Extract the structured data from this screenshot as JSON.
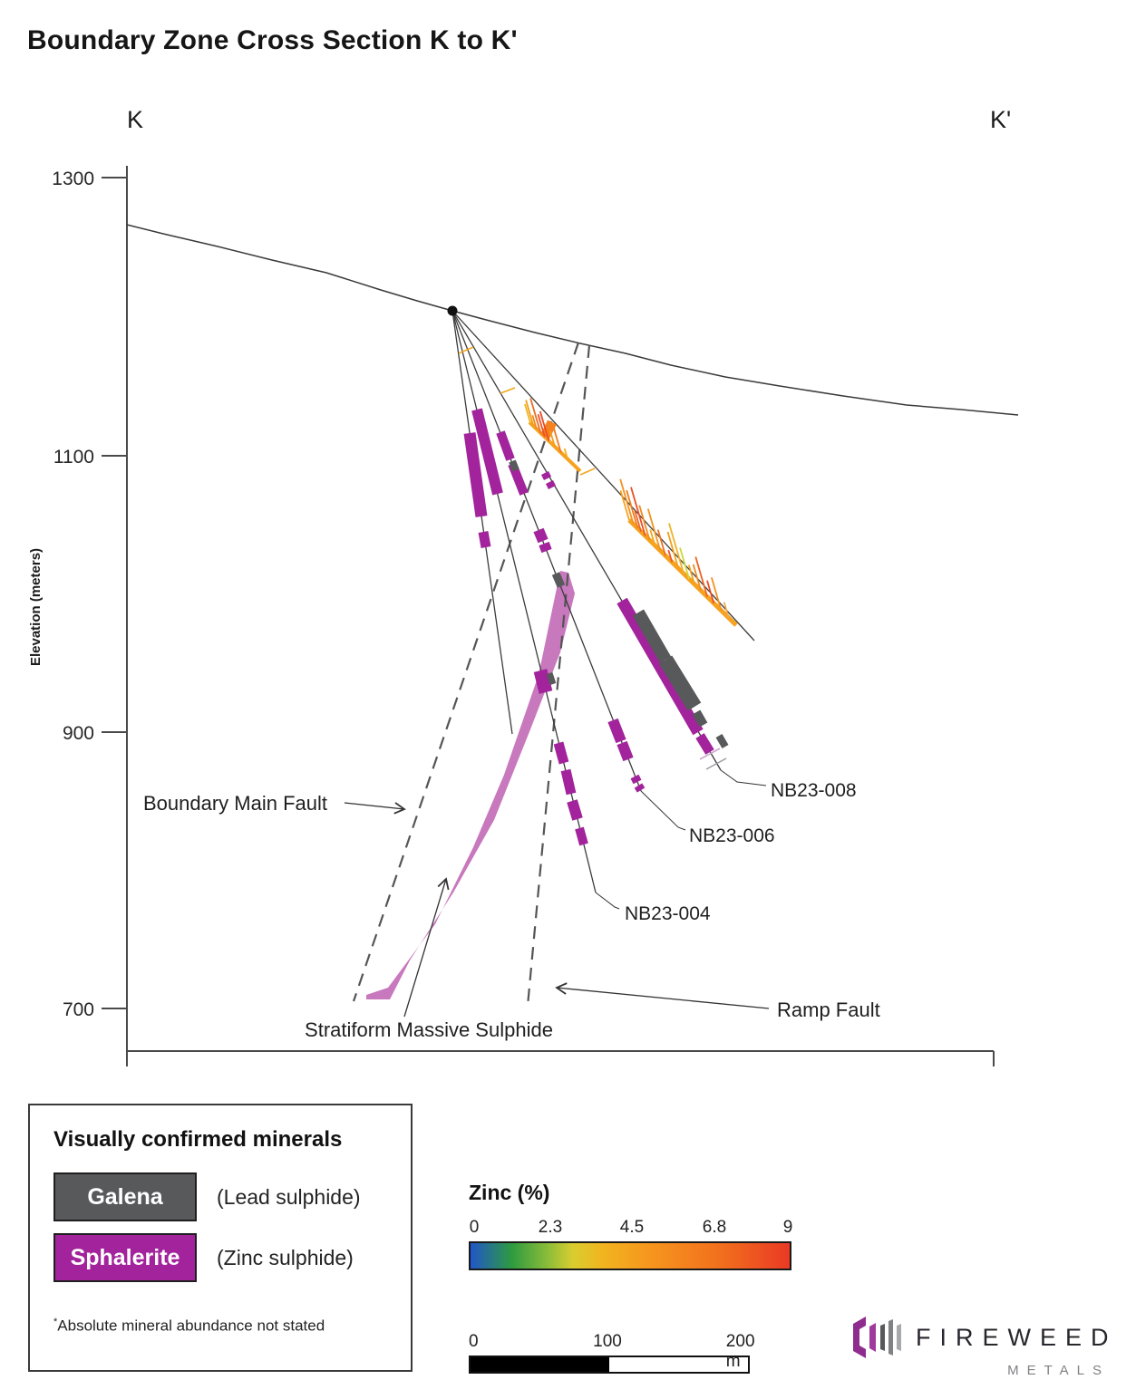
{
  "title": "Boundary Zone Cross Section K to K'",
  "section": {
    "start_marker": "K",
    "end_marker": "K'"
  },
  "y_axis": {
    "label": "Elevation (meters)",
    "ticks": [
      "1300",
      "1100",
      "900",
      "700"
    ]
  },
  "annotations": {
    "boundary_main_fault": "Boundary Main Fault",
    "ramp_fault": "Ramp Fault",
    "stratiform_massive_sulphide": "Stratiform Massive Sulphide"
  },
  "drillholes": {
    "nb23_004": "NB23-004",
    "nb23_006": "NB23-006",
    "nb23_008": "NB23-008"
  },
  "legend": {
    "title": "Visually confirmed minerals",
    "items": [
      {
        "name": "Galena",
        "description": "(Lead sulphide)",
        "color": "#58595b"
      },
      {
        "name": "Sphalerite",
        "description": "(Zinc sulphide)",
        "color": "#a2239b"
      }
    ],
    "footnote_marker": "*",
    "footnote": "Absolute mineral abundance not stated"
  },
  "zinc_scale": {
    "title": "Zinc (%)",
    "ticks": [
      "0",
      "2.3",
      "4.5",
      "6.8",
      "9"
    ],
    "gradient_colors": [
      "#2156c8",
      "#2e9b3f",
      "#d9cd2f",
      "#f6921e",
      "#ea3a24"
    ]
  },
  "scale_bar": {
    "ticks": [
      "0",
      "100",
      "200 m"
    ]
  },
  "logo": {
    "company": "FIREWEED",
    "division": "METALS"
  },
  "colors": {
    "sphalerite": "#a2239b",
    "galena": "#58595b",
    "sms_lens": "#c878bd",
    "assay_orange": "#f6a21f"
  }
}
